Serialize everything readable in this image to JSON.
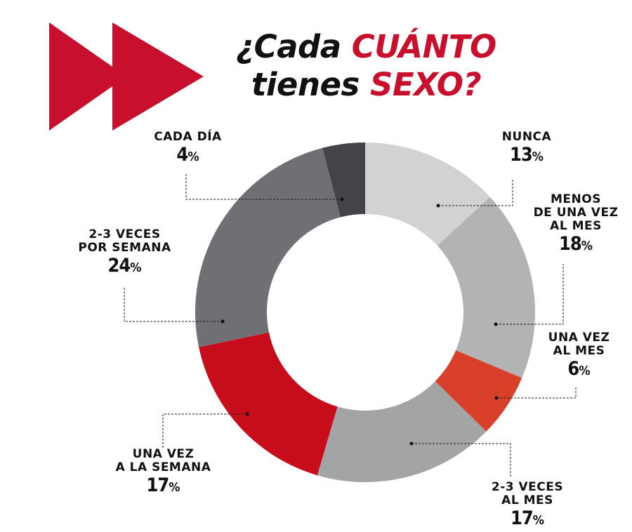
{
  "header": {
    "title_part1": "¿Cada",
    "title_part2": "CUÁNTO",
    "title_part3": "tienes",
    "title_part4": "SEXO?"
  },
  "colors": {
    "accent": "#c8102e",
    "text": "#111111"
  },
  "chart_data": {
    "type": "pie",
    "title": "¿Cada CUÁNTO tienes SEXO?",
    "donut": true,
    "unit": "%",
    "slices": [
      {
        "label": "NUNCA",
        "value": 13,
        "color": "#d1d2d3"
      },
      {
        "label": "MENOS\nDE UNA VEZ\nAL MES",
        "value": 18,
        "color": "#b2b3b5"
      },
      {
        "label": "UNA VEZ\nAL MES",
        "value": 6,
        "color": "#d9402a"
      },
      {
        "label": "2-3 VECES\nAL MES",
        "value": 17,
        "color": "#a3a4a6"
      },
      {
        "label": "UNA VEZ\nA LA SEMANA",
        "value": 17,
        "color": "#c70c1c"
      },
      {
        "label": "2-3 VECES\nPOR SEMANA",
        "value": 24,
        "color": "#6f7073"
      },
      {
        "label": "CADA DÍA",
        "value": 4,
        "color": "#434447"
      }
    ]
  }
}
